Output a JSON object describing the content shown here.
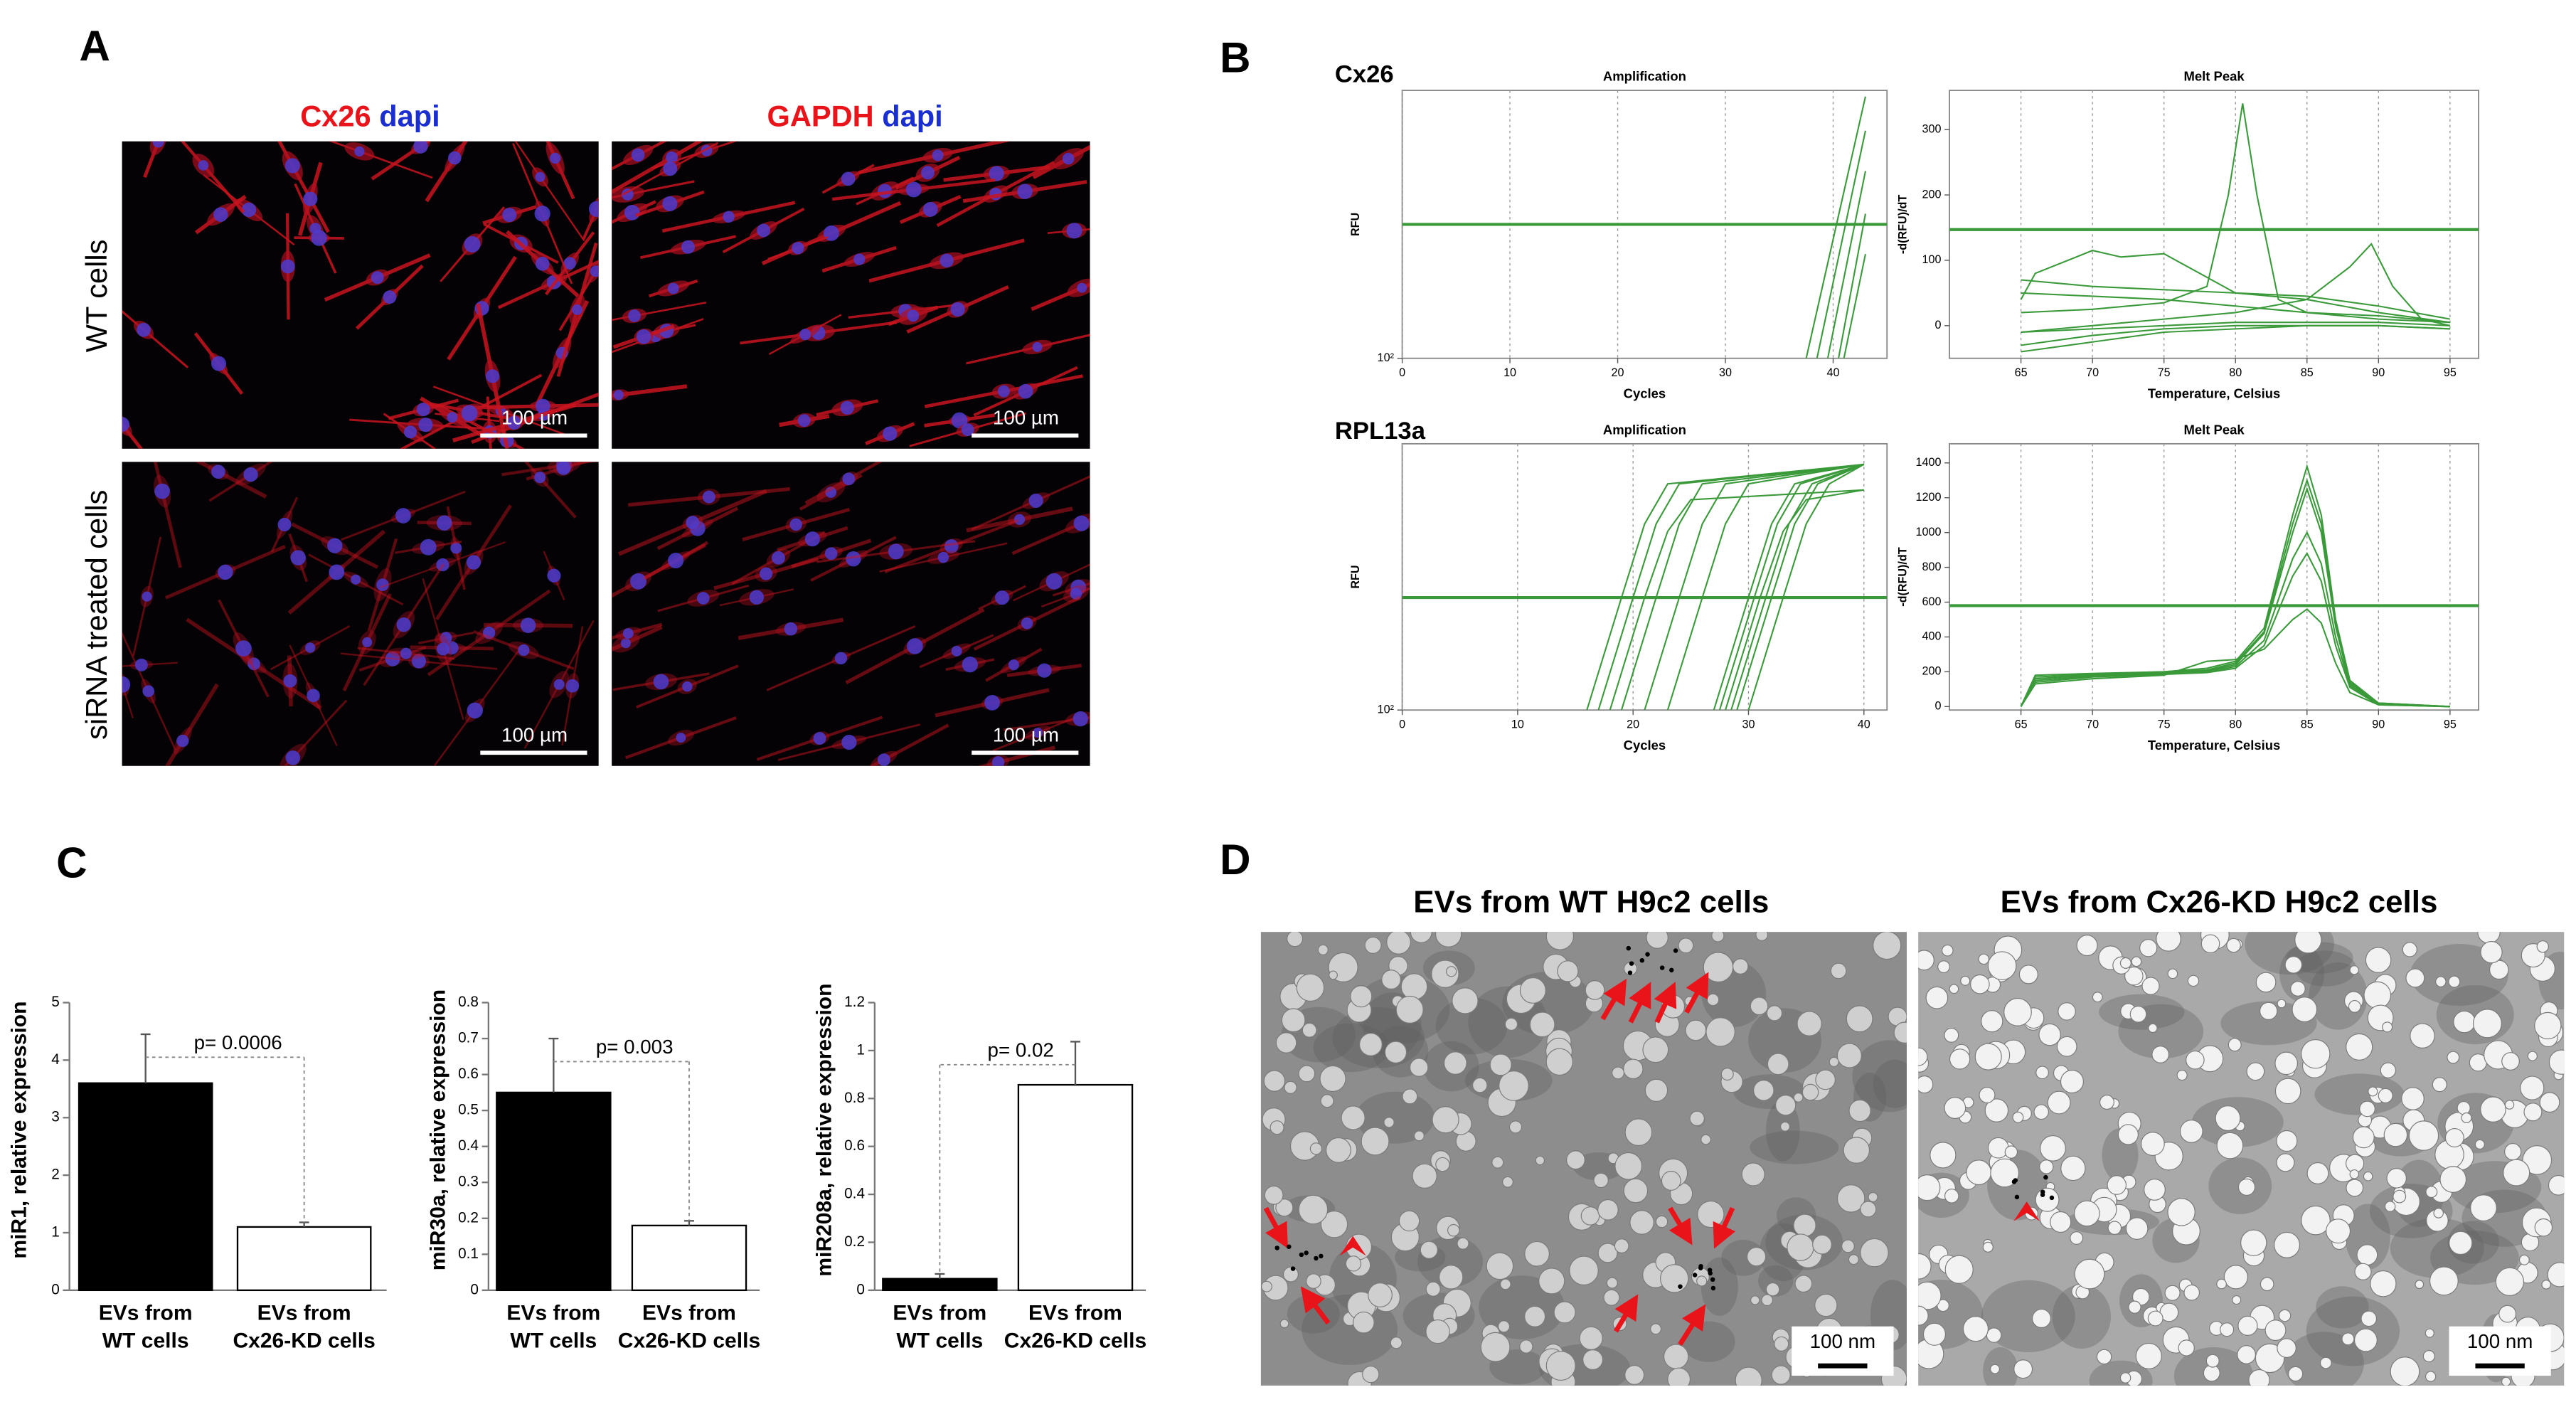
{
  "panel_labels": [
    "A",
    "B",
    "C",
    "D"
  ],
  "panel_a": {
    "column_titles": [
      {
        "stain": "Cx26",
        "counterstain": "dapi"
      },
      {
        "stain": "GAPDH",
        "counterstain": "dapi"
      }
    ],
    "row_labels": [
      "WT cells",
      "siRNA treated cells"
    ],
    "scale_bar": "100 µm"
  },
  "panel_b": {
    "rows": [
      "Cx26",
      "RPL13a"
    ]
  },
  "panel_d": {
    "titles": [
      "EVs from WT H9c2 cells",
      "EVs from Cx26-KD H9c2 cells"
    ],
    "scale_bar": "100 nm"
  },
  "chart_data": [
    {
      "type": "line",
      "title": "Amplification",
      "x_label": "Cycles",
      "y_label": "RFU",
      "xlim": [
        0,
        45
      ],
      "xticks": [
        0,
        10,
        20,
        30,
        40
      ],
      "ylim": [
        100,
        10000
      ],
      "log_y": true,
      "yticks": [
        {
          "value": 100,
          "label": "10²"
        }
      ],
      "grid": "x",
      "threshold": 1000,
      "color": "#3a9a3a",
      "series": [
        {
          "x": [
            37.5,
            43
          ],
          "values": [
            100,
            9000
          ]
        },
        {
          "x": [
            38.5,
            43
          ],
          "values": [
            100,
            5000
          ]
        },
        {
          "x": [
            39.5,
            43
          ],
          "values": [
            100,
            2500
          ]
        },
        {
          "x": [
            40.5,
            43
          ],
          "values": [
            100,
            1200
          ]
        },
        {
          "x": [
            41,
            43
          ],
          "values": [
            100,
            600
          ]
        }
      ]
    },
    {
      "type": "line",
      "title": "Melt Peak",
      "x_label": "Temperature, Celsius",
      "y_label": "-d(RFU)/dT",
      "xlim": [
        60,
        97
      ],
      "xticks": [
        65,
        70,
        75,
        80,
        85,
        90,
        95
      ],
      "ylim": [
        -50,
        360
      ],
      "yticks": [
        0,
        100,
        200,
        300
      ],
      "grid": "x",
      "threshold": 147,
      "color": "#3a9a3a",
      "series": [
        {
          "x": [
            65,
            70,
            75,
            78,
            79.5,
            80.5,
            81.5,
            83,
            85,
            90,
            95
          ],
          "values": [
            20,
            25,
            35,
            60,
            200,
            340,
            200,
            40,
            20,
            15,
            5
          ]
        },
        {
          "x": [
            65,
            70,
            75,
            80,
            85,
            88,
            89.5,
            91,
            93,
            95
          ],
          "values": [
            -10,
            0,
            10,
            20,
            40,
            90,
            125,
            60,
            10,
            0
          ]
        },
        {
          "x": [
            65,
            66,
            70,
            72,
            75,
            80,
            85,
            90,
            95
          ],
          "values": [
            40,
            80,
            115,
            105,
            110,
            50,
            40,
            20,
            5
          ]
        },
        {
          "x": [
            65,
            70,
            75,
            80,
            85,
            90,
            95
          ],
          "values": [
            70,
            60,
            55,
            50,
            45,
            30,
            10
          ]
        },
        {
          "x": [
            65,
            70,
            75,
            80,
            85,
            90,
            95
          ],
          "values": [
            50,
            45,
            40,
            30,
            20,
            10,
            5
          ]
        },
        {
          "x": [
            65,
            70,
            75,
            80,
            85,
            90,
            95
          ],
          "values": [
            -10,
            -5,
            0,
            5,
            5,
            5,
            0
          ]
        },
        {
          "x": [
            65,
            70,
            75,
            80,
            85,
            90,
            95
          ],
          "values": [
            -30,
            -15,
            -5,
            0,
            0,
            0,
            -5
          ]
        },
        {
          "x": [
            65,
            70,
            75,
            80,
            85,
            90,
            95
          ],
          "values": [
            -40,
            -25,
            -10,
            -5,
            0,
            0,
            -5
          ]
        }
      ]
    },
    {
      "type": "line",
      "title": "Amplification",
      "x_label": "Cycles",
      "y_label": "RFU",
      "xlim": [
        0,
        42
      ],
      "xticks": [
        0,
        10,
        20,
        30,
        40
      ],
      "ylim": [
        100,
        10000
      ],
      "log_y": true,
      "yticks": [
        {
          "value": 100,
          "label": "10²"
        }
      ],
      "grid": "x",
      "threshold": 700,
      "color": "#3a9a3a",
      "series": [
        {
          "x": [
            16,
            19,
            21,
            23,
            40
          ],
          "values": [
            100,
            700,
            2500,
            5000,
            7000
          ]
        },
        {
          "x": [
            17,
            20,
            22,
            24,
            40
          ],
          "values": [
            100,
            700,
            2500,
            5000,
            7000
          ]
        },
        {
          "x": [
            18,
            21,
            23,
            25,
            40
          ],
          "values": [
            100,
            700,
            2200,
            3800,
            4500
          ]
        },
        {
          "x": [
            19,
            22,
            24,
            26,
            40
          ],
          "values": [
            100,
            700,
            2500,
            5000,
            7000
          ]
        },
        {
          "x": [
            21,
            24,
            26,
            28,
            40
          ],
          "values": [
            100,
            700,
            2500,
            5000,
            7000
          ]
        },
        {
          "x": [
            23,
            26,
            28,
            30,
            40
          ],
          "values": [
            100,
            700,
            2500,
            5000,
            7000
          ]
        },
        {
          "x": [
            27,
            30,
            32,
            34,
            40
          ],
          "values": [
            100,
            700,
            2500,
            5000,
            7000
          ]
        },
        {
          "x": [
            27.5,
            30.5,
            32.5,
            34.5,
            40
          ],
          "values": [
            100,
            700,
            2500,
            5000,
            7000
          ]
        },
        {
          "x": [
            28,
            31,
            33,
            35,
            40
          ],
          "values": [
            100,
            700,
            2200,
            3800,
            4500
          ]
        },
        {
          "x": [
            28.5,
            31.5,
            33.5,
            35.5,
            40
          ],
          "values": [
            100,
            700,
            2500,
            5000,
            7000
          ]
        },
        {
          "x": [
            29,
            32,
            34,
            36,
            40
          ],
          "values": [
            100,
            700,
            2500,
            5000,
            7000
          ]
        },
        {
          "x": [
            30,
            33,
            35,
            37,
            40
          ],
          "values": [
            100,
            700,
            2500,
            5000,
            7000
          ]
        }
      ]
    },
    {
      "type": "line",
      "title": "Melt Peak",
      "x_label": "Temperature, Celsius",
      "y_label": "-d(RFU)/dT",
      "xlim": [
        60,
        97
      ],
      "xticks": [
        65,
        70,
        75,
        80,
        85,
        90,
        95
      ],
      "ylim": [
        -20,
        1510
      ],
      "yticks": [
        0,
        200,
        400,
        600,
        800,
        1000,
        1200,
        1400
      ],
      "grid": "x",
      "threshold": 580,
      "color": "#3a9a3a",
      "series": [
        {
          "x": [
            65,
            66,
            70,
            75,
            78,
            80,
            82,
            84,
            85,
            86,
            87,
            88,
            90,
            95
          ],
          "values": [
            0,
            180,
            190,
            200,
            220,
            260,
            450,
            1100,
            1380,
            1100,
            500,
            150,
            20,
            0
          ]
        },
        {
          "x": [
            65,
            66,
            70,
            75,
            78,
            80,
            82,
            84,
            85,
            86,
            87,
            88,
            90,
            95
          ],
          "values": [
            0,
            170,
            185,
            200,
            210,
            250,
            430,
            1050,
            1300,
            1050,
            480,
            140,
            20,
            0
          ]
        },
        {
          "x": [
            65,
            66,
            70,
            75,
            78,
            80,
            82,
            84,
            85,
            86,
            87,
            88,
            90,
            95
          ],
          "values": [
            0,
            160,
            180,
            195,
            205,
            240,
            420,
            1000,
            1250,
            1000,
            460,
            130,
            15,
            0
          ]
        },
        {
          "x": [
            65,
            66,
            70,
            75,
            78,
            80,
            82,
            84,
            85,
            86,
            87,
            88,
            90,
            95
          ],
          "values": [
            0,
            150,
            175,
            190,
            200,
            230,
            380,
            850,
            1000,
            820,
            400,
            120,
            15,
            0
          ]
        },
        {
          "x": [
            65,
            66,
            70,
            75,
            78,
            80,
            82,
            84,
            85,
            86,
            87,
            88,
            90,
            95
          ],
          "values": [
            0,
            140,
            170,
            185,
            195,
            220,
            350,
            750,
            880,
            720,
            350,
            110,
            10,
            0
          ]
        },
        {
          "x": [
            65,
            66,
            70,
            75,
            78,
            80,
            82,
            84,
            85,
            86,
            87,
            88,
            90,
            95
          ],
          "values": [
            0,
            130,
            160,
            180,
            260,
            270,
            330,
            500,
            560,
            480,
            250,
            80,
            10,
            0
          ]
        }
      ]
    },
    {
      "type": "bar",
      "y_label": "miR1, relative expression",
      "categories": [
        "EVs from\nWT cells",
        "EVs from\nCx26-KD cells"
      ],
      "values": [
        3.6,
        1.1
      ],
      "errors": [
        0.85,
        0.08
      ],
      "colors": [
        "#000000",
        "#ffffff"
      ],
      "ylim": [
        0,
        5
      ],
      "yticks": [
        0,
        1,
        2,
        3,
        4,
        5
      ],
      "annotation": "p= 0.0006"
    },
    {
      "type": "bar",
      "y_label": "miR30a, relative expression",
      "categories": [
        "EVs from\nWT cells",
        "EVs from\nCx26-KD cells"
      ],
      "values": [
        0.55,
        0.18
      ],
      "errors": [
        0.15,
        0.013
      ],
      "colors": [
        "#000000",
        "#ffffff"
      ],
      "ylim": [
        0,
        0.8
      ],
      "yticks": [
        0,
        0.1,
        0.2,
        0.3,
        0.4,
        0.5,
        0.6,
        0.7,
        0.8
      ],
      "annotation": "p= 0.003"
    },
    {
      "type": "bar",
      "y_label": "miR208a, relative expression",
      "categories": [
        "EVs from\nWT cells",
        "EVs from\nCx26-KD cells"
      ],
      "values": [
        0.048,
        0.857
      ],
      "errors": [
        0.02,
        0.18
      ],
      "colors": [
        "#000000",
        "#ffffff"
      ],
      "ylim": [
        0,
        1.2
      ],
      "yticks": [
        0,
        0.2,
        0.4,
        0.6,
        0.8,
        1,
        1.2
      ],
      "annotation": "p= 0.02"
    }
  ]
}
